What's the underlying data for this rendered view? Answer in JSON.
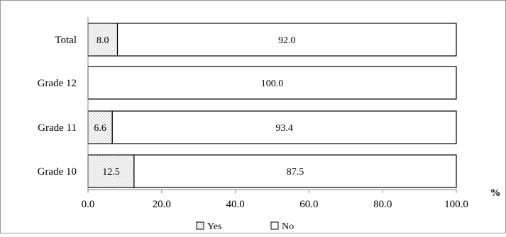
{
  "chart_data": {
    "type": "bar",
    "orientation": "horizontal",
    "stacked": true,
    "percent_stacked": true,
    "categories": [
      "Total",
      "Grade 12",
      "Grade 11",
      "Grade 10"
    ],
    "series": [
      {
        "name": "Yes",
        "values": [
          8.0,
          0.0,
          6.6,
          12.5
        ],
        "pattern": "dotted",
        "color": "#ffffff"
      },
      {
        "name": "No",
        "values": [
          92.0,
          100.0,
          93.4,
          87.5
        ],
        "pattern": "none",
        "color": "#ffffff"
      }
    ],
    "data_labels": [
      [
        "8.0",
        "",
        "6.6",
        "12.5"
      ],
      [
        "92.0",
        "100.0",
        "93.4",
        "87.5"
      ]
    ],
    "xlim": [
      0,
      100
    ],
    "xticks": [
      "0.0",
      "20.0",
      "40.0",
      "60.0",
      "80.0",
      "100.0"
    ],
    "xunit": "%",
    "grid": false,
    "legend_position": "bottom",
    "stroke_color": "#000000",
    "frame_color": "#999999"
  }
}
